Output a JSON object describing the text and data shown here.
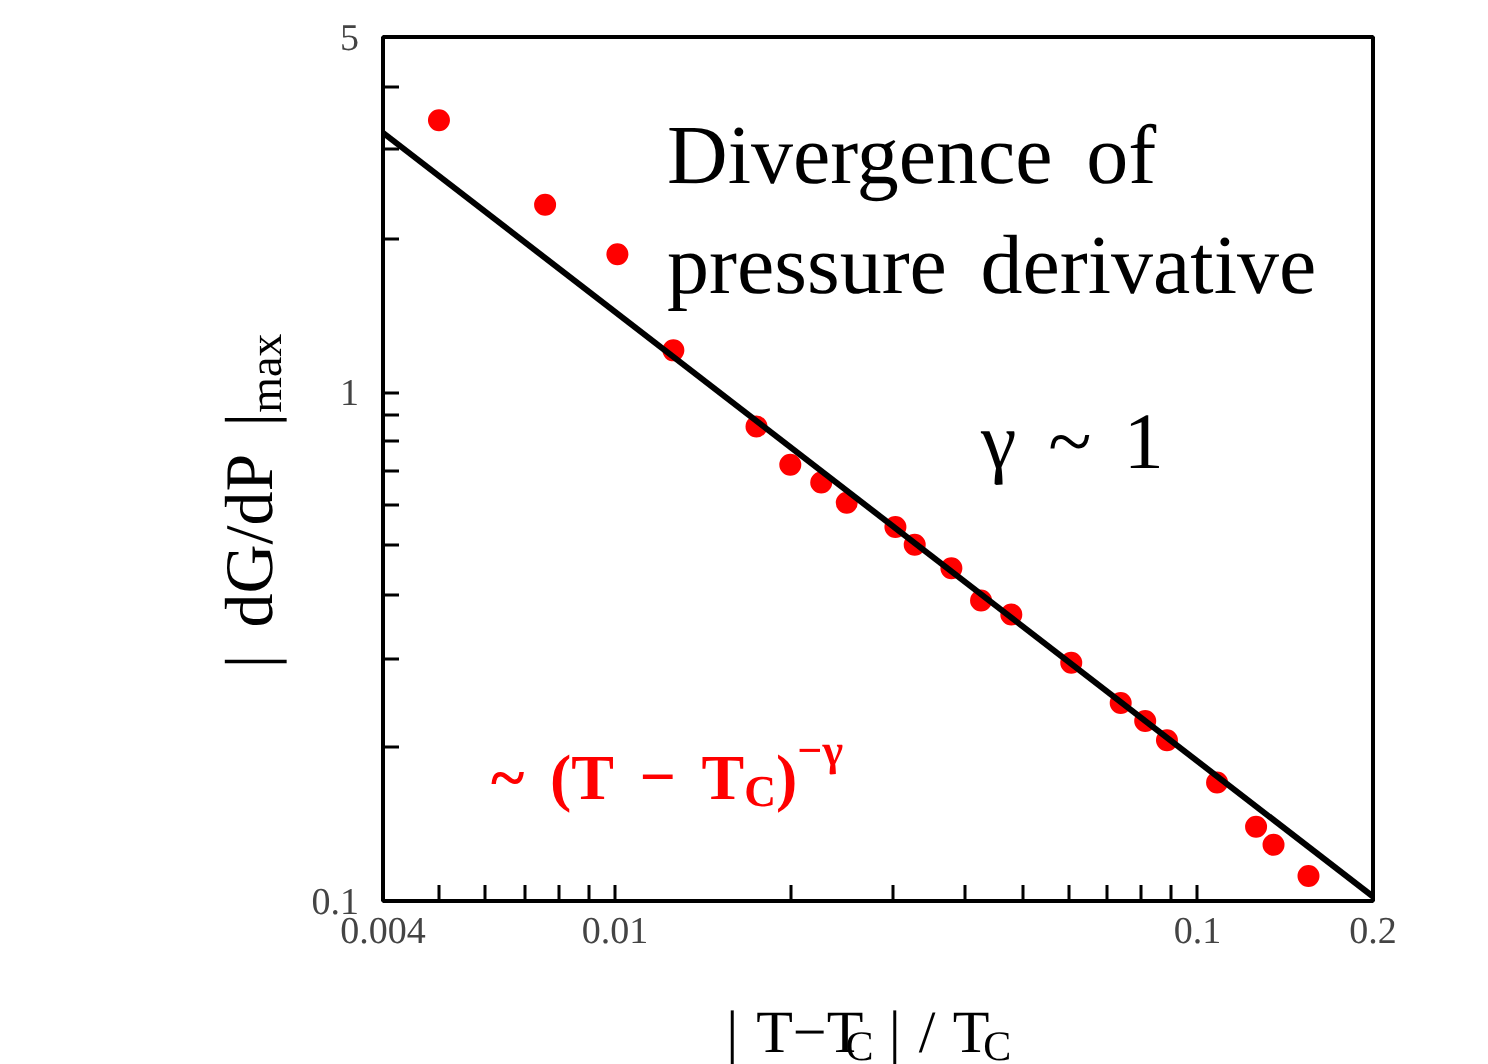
{
  "chart_data": {
    "type": "scatter",
    "xlabel": "| T−T$_{C}$ | / T$_{C}$",
    "ylabel": "| dG/dP |$_{max}$",
    "log": "xy",
    "xlim": [
      0.004,
      0.2
    ],
    "ylim": [
      0.1,
      5
    ],
    "xticks": [
      0.004,
      {
        "value": 0.005,
        "label": null
      },
      {
        "value": 0.006,
        "label": null
      },
      {
        "value": 0.007,
        "label": null
      },
      {
        "value": 0.008,
        "label": null
      },
      {
        "value": 0.009,
        "label": null
      },
      0.01,
      {
        "value": 0.02,
        "label": null
      },
      {
        "value": 0.03,
        "label": null
      },
      {
        "value": 0.04,
        "label": null
      },
      {
        "value": 0.05,
        "label": null
      },
      {
        "value": 0.06,
        "label": null
      },
      {
        "value": 0.07,
        "label": null
      },
      {
        "value": 0.08,
        "label": null
      },
      {
        "value": 0.09,
        "label": null
      },
      0.1,
      0.2
    ],
    "yticks": [
      0.1,
      {
        "value": 0.2,
        "label": null
      },
      {
        "value": 0.3,
        "label": null
      },
      {
        "value": 0.4,
        "label": null
      },
      {
        "value": 0.5,
        "label": null
      },
      {
        "value": 0.6,
        "label": null
      },
      {
        "value": 0.7,
        "label": null
      },
      {
        "value": 0.8,
        "label": null
      },
      {
        "value": 0.9,
        "label": null
      },
      1,
      {
        "value": 2,
        "label": null
      },
      {
        "value": 3,
        "label": null
      },
      {
        "value": 4,
        "label": null
      },
      5
    ],
    "annotations": [
      "Divergence of\npressure derivative",
      "γ ~ 1",
      "~ (T − T$_{C}$)$^{−γ}$"
    ],
    "series": [
      {
        "color": "#ff0000",
        "marker": "circle",
        "x": [
          0.00499,
          0.00759,
          0.0101,
          0.0126,
          0.0175,
          0.02,
          0.0226,
          0.025,
          0.0303,
          0.0327,
          0.0378,
          0.0425,
          0.0479,
          0.0607,
          0.0738,
          0.0813,
          0.0886,
          0.108,
          0.126,
          0.135,
          0.155
        ],
        "values": [
          3.43,
          2.34,
          1.87,
          1.21,
          0.857,
          0.721,
          0.665,
          0.607,
          0.544,
          0.502,
          0.451,
          0.39,
          0.366,
          0.294,
          0.245,
          0.226,
          0.207,
          0.171,
          0.14,
          0.129,
          0.112
        ]
      },
      {
        "type": "line",
        "color": "#000000",
        "x": [
          0.004,
          0.2
        ],
        "values": [
          3.24,
          0.102
        ]
      }
    ]
  }
}
